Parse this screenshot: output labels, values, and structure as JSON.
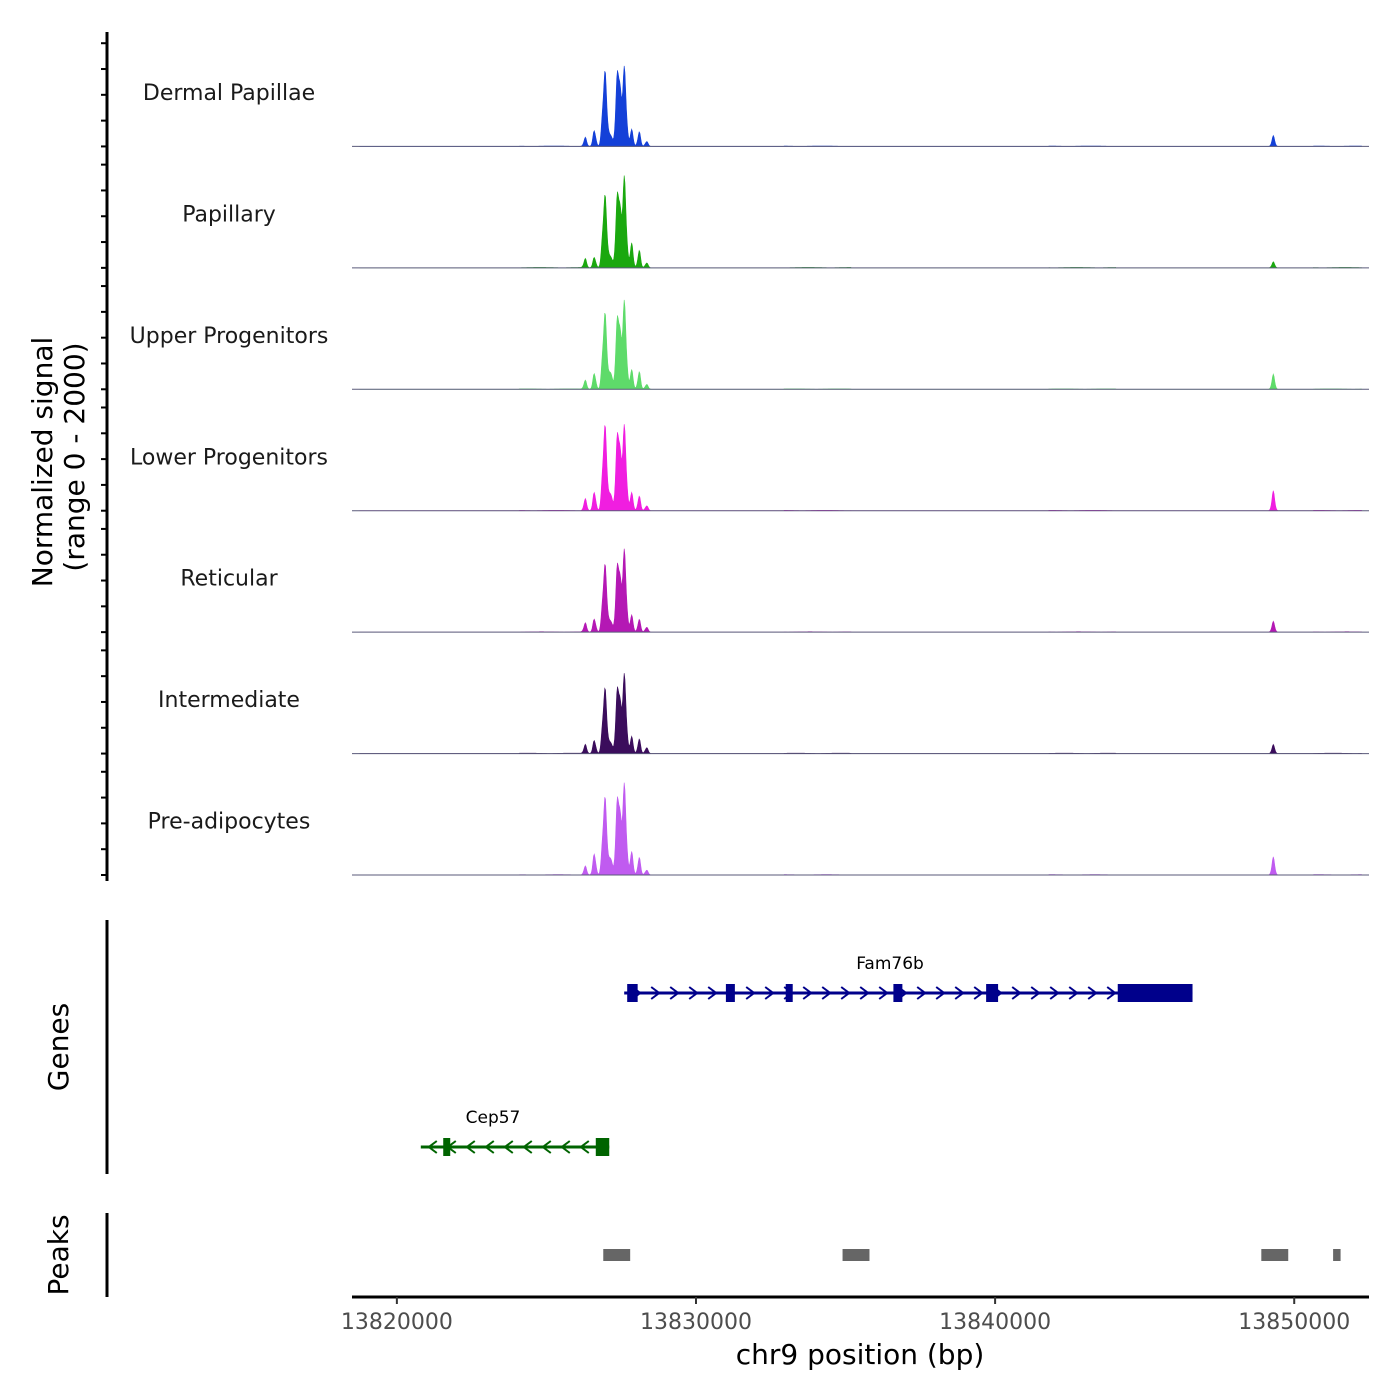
{
  "chart_data": {
    "type": "genome_browser",
    "chromosome": "chr9",
    "xlim": [
      13818500,
      13852500
    ],
    "xlabel": "chr9 position (bp)",
    "xticks": [
      13820000,
      13830000,
      13840000,
      13850000
    ],
    "xtick_labels": [
      "13820000",
      "13830000",
      "13840000",
      "13850000"
    ],
    "coverage": {
      "ylabel_line1": "Normalized signal",
      "ylabel_line2": "(range 0 - 2000)",
      "ylim": [
        0,
        2000
      ],
      "tracks": [
        {
          "name": "Dermal Papillae",
          "color": "#1440d8",
          "peaks": [
            [
              13826300,
              150
            ],
            [
              13826600,
              300
            ],
            [
              13826950,
              1500
            ],
            [
              13827150,
              200
            ],
            [
              13827400,
              1650
            ],
            [
              13827600,
              1350
            ],
            [
              13827850,
              330
            ],
            [
              13828100,
              250
            ],
            [
              13828350,
              100
            ],
            [
              13849300,
              180
            ]
          ]
        },
        {
          "name": "Papillary",
          "color": "#1aa80f",
          "peaks": [
            [
              13826300,
              150
            ],
            [
              13826600,
              200
            ],
            [
              13826950,
              1450
            ],
            [
              13827150,
              200
            ],
            [
              13827400,
              1650
            ],
            [
              13827600,
              1550
            ],
            [
              13827850,
              480
            ],
            [
              13828100,
              300
            ],
            [
              13828350,
              100
            ],
            [
              13849300,
              100
            ]
          ]
        },
        {
          "name": "Upper Progenitors",
          "color": "#5edb6a",
          "peaks": [
            [
              13826300,
              150
            ],
            [
              13826600,
              300
            ],
            [
              13826950,
              1520
            ],
            [
              13827150,
              300
            ],
            [
              13827400,
              1600
            ],
            [
              13827600,
              1500
            ],
            [
              13827850,
              380
            ],
            [
              13828100,
              300
            ],
            [
              13828350,
              100
            ],
            [
              13849300,
              250
            ]
          ]
        },
        {
          "name": "Lower Progenitors",
          "color": "#f01ee0",
          "peaks": [
            [
              13826300,
              200
            ],
            [
              13826600,
              350
            ],
            [
              13826950,
              1700
            ],
            [
              13827150,
              300
            ],
            [
              13827400,
              1700
            ],
            [
              13827600,
              1450
            ],
            [
              13827850,
              350
            ],
            [
              13828100,
              250
            ],
            [
              13828350,
              100
            ],
            [
              13849300,
              330
            ]
          ]
        },
        {
          "name": "Reticular",
          "color": "#b418b4",
          "peaks": [
            [
              13826300,
              150
            ],
            [
              13826600,
              250
            ],
            [
              13826950,
              1350
            ],
            [
              13827150,
              200
            ],
            [
              13827400,
              1500
            ],
            [
              13827600,
              1400
            ],
            [
              13827850,
              330
            ],
            [
              13828100,
              220
            ],
            [
              13828350,
              100
            ],
            [
              13849300,
              180
            ]
          ]
        },
        {
          "name": "Intermediate",
          "color": "#3b0d5c",
          "peaks": [
            [
              13826300,
              150
            ],
            [
              13826600,
              250
            ],
            [
              13826950,
              1300
            ],
            [
              13827150,
              200
            ],
            [
              13827400,
              1450
            ],
            [
              13827600,
              1350
            ],
            [
              13827850,
              330
            ],
            [
              13828100,
              250
            ],
            [
              13828350,
              120
            ],
            [
              13849300,
              150
            ]
          ]
        },
        {
          "name": "Pre-adipocytes",
          "color": "#c05bf0",
          "peaks": [
            [
              13826300,
              150
            ],
            [
              13826600,
              400
            ],
            [
              13826950,
              1550
            ],
            [
              13827150,
              300
            ],
            [
              13827400,
              1700
            ],
            [
              13827600,
              1550
            ],
            [
              13827850,
              450
            ],
            [
              13828100,
              300
            ],
            [
              13828350,
              100
            ],
            [
              13849300,
              300
            ]
          ]
        }
      ]
    },
    "genes_track": {
      "label": "Genes",
      "genes": [
        {
          "name": "Fam76b",
          "strand": "+",
          "color": "#00008b",
          "start": 13827600,
          "end": 13846600,
          "exons": [
            [
              13827700,
              13828050
            ],
            [
              13831000,
              13831300
            ],
            [
              13833000,
              13833200
            ],
            [
              13836600,
              13836900
            ],
            [
              13839700,
              13840100
            ],
            [
              13844100,
              13846600
            ]
          ]
        },
        {
          "name": "Cep57",
          "strand": "-",
          "color": "#006400",
          "start": 13820800,
          "end": 13827100,
          "exons": [
            [
              13821550,
              13821700
            ],
            [
              13826650,
              13827100
            ]
          ]
        }
      ]
    },
    "peaks_track": {
      "label": "Peaks",
      "color": "#666666",
      "regions": [
        [
          13826900,
          13827800
        ],
        [
          13834900,
          13835800
        ],
        [
          13848900,
          13849800
        ],
        [
          13851300,
          13851550
        ]
      ]
    }
  }
}
